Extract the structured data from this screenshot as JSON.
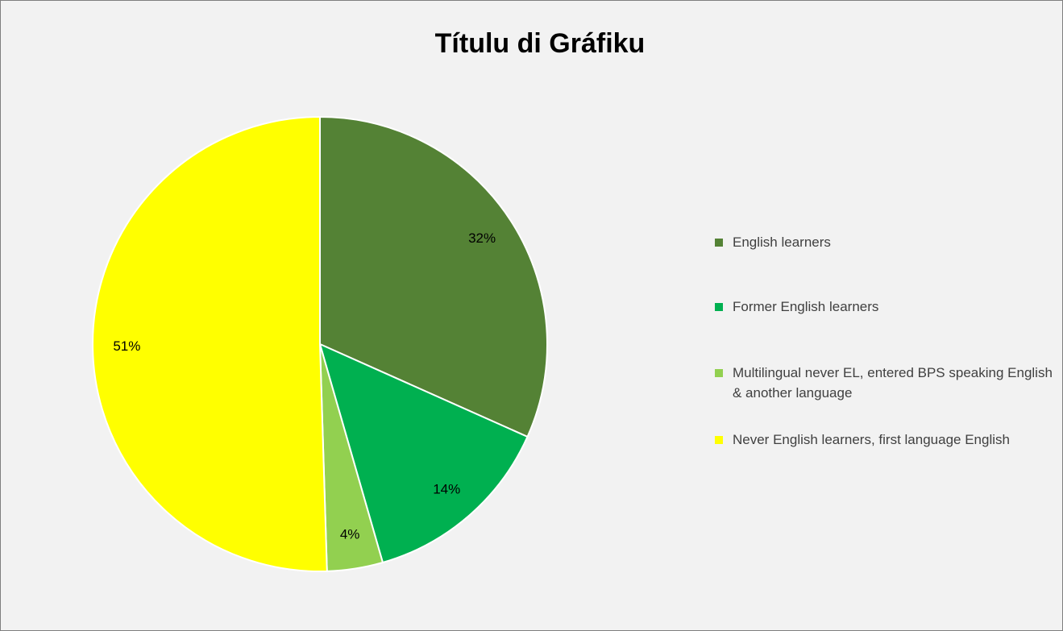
{
  "chart_data": {
    "type": "pie",
    "title": "Títulu di Gráfiku",
    "categories": [
      "English learners",
      "Former English learners",
      "Multilingual never EL, entered BPS speaking English & another language",
      "Never English learners, first language English"
    ],
    "values": [
      32,
      14,
      4,
      51
    ],
    "value_labels": [
      "32%",
      "14%",
      "4%",
      "51%"
    ],
    "colors": [
      "#548235",
      "#00b050",
      "#92d050",
      "#ffff00"
    ],
    "legend": "right"
  }
}
